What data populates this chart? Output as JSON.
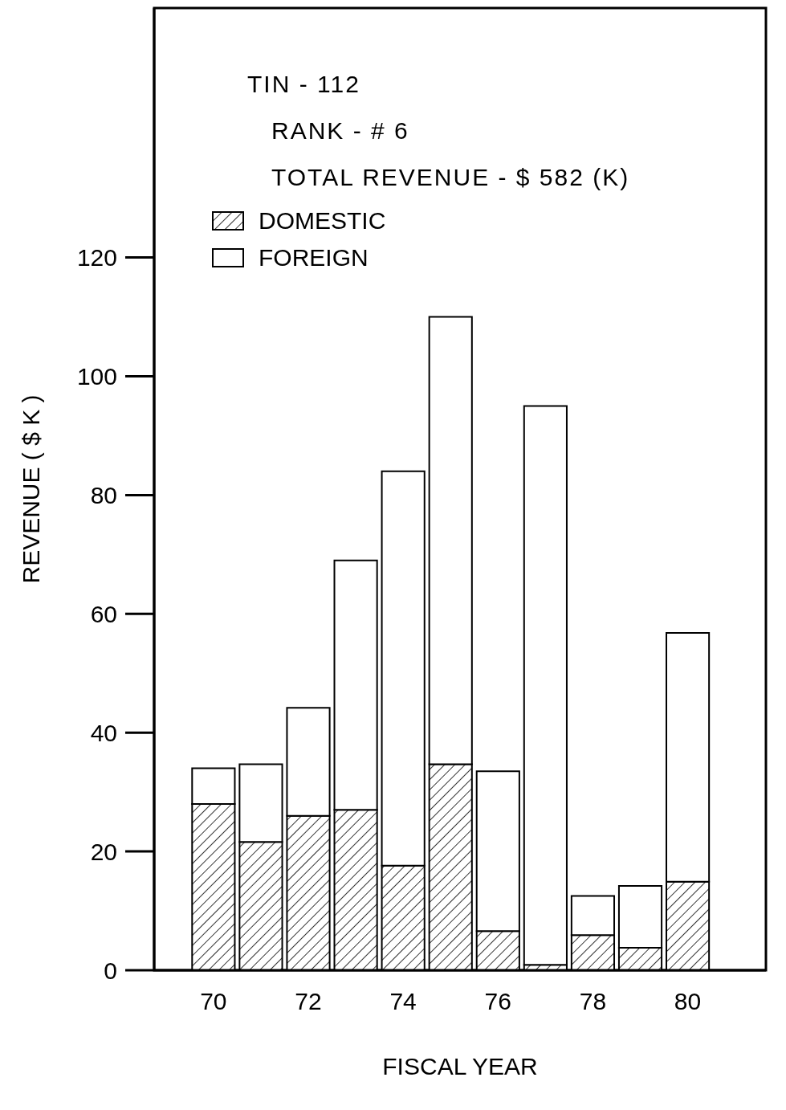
{
  "chart_data": {
    "type": "bar",
    "stacked": true,
    "xlabel": "FISCAL YEAR",
    "ylabel": "REVENUE ( $ K )",
    "annotations": [
      "TIN - 112",
      "RANK - # 6",
      "TOTAL REVENUE - $ 582 (K)"
    ],
    "x": [
      70,
      71,
      72,
      73,
      74,
      75,
      76,
      77,
      78,
      79,
      80
    ],
    "series": [
      {
        "name": "DOMESTIC",
        "color": "#000000",
        "values": [
          28,
          21.6,
          26,
          27,
          17.6,
          34.7,
          6.6,
          0.9,
          5.9,
          3.8,
          14.9
        ]
      },
      {
        "name": "FOREIGN",
        "color": "#ffffff",
        "values": [
          6,
          13.1,
          18.2,
          42,
          66.4,
          75.3,
          26.9,
          94.1,
          6.6,
          10.4,
          41.9
        ]
      }
    ],
    "xlim": [
      68.75,
      81.65
    ],
    "xticks": [
      70,
      72,
      74,
      76,
      78,
      80
    ],
    "ylim": [
      0,
      162
    ],
    "yticks": [
      0,
      20,
      40,
      60,
      80,
      100,
      120
    ],
    "grid": false,
    "legend": "top left"
  }
}
